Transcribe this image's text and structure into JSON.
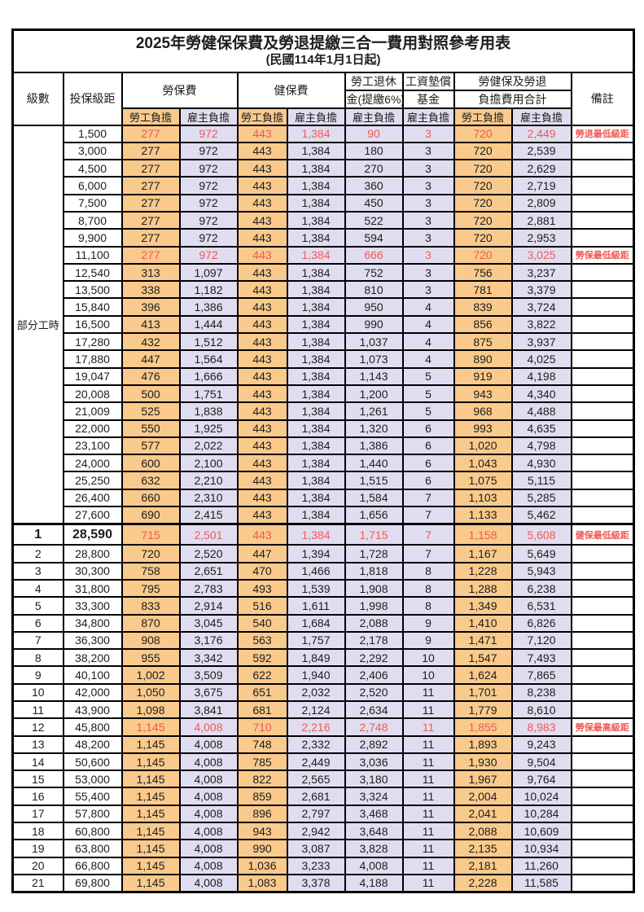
{
  "title": "2025年勞健保保費及勞退提繳三合一費用對照參考用表",
  "subtitle": "(民國114年1月1日起)",
  "colors": {
    "employee_col_bg": "#f9ca8c",
    "employer_col_bg": "#e1ddf0",
    "highlight_text": "#ee5a54",
    "border": "#000000",
    "text": "#1d1d1d"
  },
  "header": {
    "level": "級數",
    "bracket": "投保級距",
    "labor_fee": "勞保費",
    "health_fee": "健保費",
    "pension_line1": "勞工退休",
    "pension_line2": "金(提繳6%)",
    "wage_fund_line1": "工資墊償",
    "wage_fund_line2": "基金",
    "total_line1": "勞健保及勞退",
    "total_line2": "負擔費用合計",
    "remark": "備註",
    "employee": "勞工負擔",
    "employer": "雇主負擔"
  },
  "part_time_label": "部分工時",
  "part_time_rowspan": 23,
  "chart_data": {
    "type": "table",
    "title": "2025年勞健保保費及勞退提繳三合一費用對照參考用表 (民國114年1月1日起)",
    "columns": [
      "級數",
      "投保級距",
      "勞保費-勞工負擔",
      "勞保費-雇主負擔",
      "健保費-勞工負擔",
      "健保費-雇主負擔",
      "勞工退休金(提繳6%)-雇主負擔",
      "工資墊償基金-雇主負擔",
      "合計-勞工負擔",
      "合計-雇主負擔",
      "備註"
    ]
  },
  "rows": [
    {
      "level": "",
      "bracket": "1,500",
      "values": [
        "277",
        "972",
        "443",
        "1,384",
        "90",
        "3",
        "720",
        "2,449"
      ],
      "remark": "勞退最低級距",
      "red": true
    },
    {
      "level": "",
      "bracket": "3,000",
      "values": [
        "277",
        "972",
        "443",
        "1,384",
        "180",
        "3",
        "720",
        "2,539"
      ],
      "remark": ""
    },
    {
      "level": "",
      "bracket": "4,500",
      "values": [
        "277",
        "972",
        "443",
        "1,384",
        "270",
        "3",
        "720",
        "2,629"
      ],
      "remark": ""
    },
    {
      "level": "",
      "bracket": "6,000",
      "values": [
        "277",
        "972",
        "443",
        "1,384",
        "360",
        "3",
        "720",
        "2,719"
      ],
      "remark": ""
    },
    {
      "level": "",
      "bracket": "7,500",
      "values": [
        "277",
        "972",
        "443",
        "1,384",
        "450",
        "3",
        "720",
        "2,809"
      ],
      "remark": ""
    },
    {
      "level": "",
      "bracket": "8,700",
      "values": [
        "277",
        "972",
        "443",
        "1,384",
        "522",
        "3",
        "720",
        "2,881"
      ],
      "remark": ""
    },
    {
      "level": "",
      "bracket": "9,900",
      "values": [
        "277",
        "972",
        "443",
        "1,384",
        "594",
        "3",
        "720",
        "2,953"
      ],
      "remark": ""
    },
    {
      "level": "",
      "bracket": "11,100",
      "values": [
        "277",
        "972",
        "443",
        "1,384",
        "666",
        "3",
        "720",
        "3,025"
      ],
      "remark": "勞保最低級距",
      "red": true
    },
    {
      "level": "",
      "bracket": "12,540",
      "values": [
        "313",
        "1,097",
        "443",
        "1,384",
        "752",
        "3",
        "756",
        "3,237"
      ],
      "remark": ""
    },
    {
      "level": "",
      "bracket": "13,500",
      "values": [
        "338",
        "1,182",
        "443",
        "1,384",
        "810",
        "3",
        "781",
        "3,379"
      ],
      "remark": ""
    },
    {
      "level": "",
      "bracket": "15,840",
      "values": [
        "396",
        "1,386",
        "443",
        "1,384",
        "950",
        "4",
        "839",
        "3,724"
      ],
      "remark": ""
    },
    {
      "level": "",
      "bracket": "16,500",
      "values": [
        "413",
        "1,444",
        "443",
        "1,384",
        "990",
        "4",
        "856",
        "3,822"
      ],
      "remark": ""
    },
    {
      "level": "",
      "bracket": "17,280",
      "values": [
        "432",
        "1,512",
        "443",
        "1,384",
        "1,037",
        "4",
        "875",
        "3,937"
      ],
      "remark": ""
    },
    {
      "level": "",
      "bracket": "17,880",
      "values": [
        "447",
        "1,564",
        "443",
        "1,384",
        "1,073",
        "4",
        "890",
        "4,025"
      ],
      "remark": ""
    },
    {
      "level": "",
      "bracket": "19,047",
      "values": [
        "476",
        "1,666",
        "443",
        "1,384",
        "1,143",
        "5",
        "919",
        "4,198"
      ],
      "remark": ""
    },
    {
      "level": "",
      "bracket": "20,008",
      "values": [
        "500",
        "1,751",
        "443",
        "1,384",
        "1,200",
        "5",
        "943",
        "4,340"
      ],
      "remark": ""
    },
    {
      "level": "",
      "bracket": "21,009",
      "values": [
        "525",
        "1,838",
        "443",
        "1,384",
        "1,261",
        "5",
        "968",
        "4,488"
      ],
      "remark": ""
    },
    {
      "level": "",
      "bracket": "22,000",
      "values": [
        "550",
        "1,925",
        "443",
        "1,384",
        "1,320",
        "6",
        "993",
        "4,635"
      ],
      "remark": ""
    },
    {
      "level": "",
      "bracket": "23,100",
      "values": [
        "577",
        "2,022",
        "443",
        "1,384",
        "1,386",
        "6",
        "1,020",
        "4,798"
      ],
      "remark": ""
    },
    {
      "level": "",
      "bracket": "24,000",
      "values": [
        "600",
        "2,100",
        "443",
        "1,384",
        "1,440",
        "6",
        "1,043",
        "4,930"
      ],
      "remark": ""
    },
    {
      "level": "",
      "bracket": "25,250",
      "values": [
        "632",
        "2,210",
        "443",
        "1,384",
        "1,515",
        "6",
        "1,075",
        "5,115"
      ],
      "remark": ""
    },
    {
      "level": "",
      "bracket": "26,400",
      "values": [
        "660",
        "2,310",
        "443",
        "1,384",
        "1,584",
        "7",
        "1,103",
        "5,285"
      ],
      "remark": ""
    },
    {
      "level": "",
      "bracket": "27,600",
      "values": [
        "690",
        "2,415",
        "443",
        "1,384",
        "1,656",
        "7",
        "1,133",
        "5,462"
      ],
      "remark": ""
    },
    {
      "level": "1",
      "bracket": "28,590",
      "values": [
        "715",
        "2,501",
        "443",
        "1,384",
        "1,715",
        "7",
        "1,158",
        "5,608"
      ],
      "remark": "健保最低級距",
      "red": true,
      "big": true,
      "section": true
    },
    {
      "level": "2",
      "bracket": "28,800",
      "values": [
        "720",
        "2,520",
        "447",
        "1,394",
        "1,728",
        "7",
        "1,167",
        "5,649"
      ],
      "remark": ""
    },
    {
      "level": "3",
      "bracket": "30,300",
      "values": [
        "758",
        "2,651",
        "470",
        "1,466",
        "1,818",
        "8",
        "1,228",
        "5,943"
      ],
      "remark": ""
    },
    {
      "level": "4",
      "bracket": "31,800",
      "values": [
        "795",
        "2,783",
        "493",
        "1,539",
        "1,908",
        "8",
        "1,288",
        "6,238"
      ],
      "remark": ""
    },
    {
      "level": "5",
      "bracket": "33,300",
      "values": [
        "833",
        "2,914",
        "516",
        "1,611",
        "1,998",
        "8",
        "1,349",
        "6,531"
      ],
      "remark": ""
    },
    {
      "level": "6",
      "bracket": "34,800",
      "values": [
        "870",
        "3,045",
        "540",
        "1,684",
        "2,088",
        "9",
        "1,410",
        "6,826"
      ],
      "remark": ""
    },
    {
      "level": "7",
      "bracket": "36,300",
      "values": [
        "908",
        "3,176",
        "563",
        "1,757",
        "2,178",
        "9",
        "1,471",
        "7,120"
      ],
      "remark": ""
    },
    {
      "level": "8",
      "bracket": "38,200",
      "values": [
        "955",
        "3,342",
        "592",
        "1,849",
        "2,292",
        "10",
        "1,547",
        "7,493"
      ],
      "remark": ""
    },
    {
      "level": "9",
      "bracket": "40,100",
      "values": [
        "1,002",
        "3,509",
        "622",
        "1,940",
        "2,406",
        "10",
        "1,624",
        "7,865"
      ],
      "remark": ""
    },
    {
      "level": "10",
      "bracket": "42,000",
      "values": [
        "1,050",
        "3,675",
        "651",
        "2,032",
        "2,520",
        "11",
        "1,701",
        "8,238"
      ],
      "remark": ""
    },
    {
      "level": "11",
      "bracket": "43,900",
      "values": [
        "1,098",
        "3,841",
        "681",
        "2,124",
        "2,634",
        "11",
        "1,779",
        "8,610"
      ],
      "remark": ""
    },
    {
      "level": "12",
      "bracket": "45,800",
      "values": [
        "1,145",
        "4,008",
        "710",
        "2,216",
        "2,748",
        "11",
        "1,855",
        "8,983"
      ],
      "remark": "勞保最高級距",
      "red": true
    },
    {
      "level": "13",
      "bracket": "48,200",
      "values": [
        "1,145",
        "4,008",
        "748",
        "2,332",
        "2,892",
        "11",
        "1,893",
        "9,243"
      ],
      "remark": ""
    },
    {
      "level": "14",
      "bracket": "50,600",
      "values": [
        "1,145",
        "4,008",
        "785",
        "2,449",
        "3,036",
        "11",
        "1,930",
        "9,504"
      ],
      "remark": ""
    },
    {
      "level": "15",
      "bracket": "53,000",
      "values": [
        "1,145",
        "4,008",
        "822",
        "2,565",
        "3,180",
        "11",
        "1,967",
        "9,764"
      ],
      "remark": ""
    },
    {
      "level": "16",
      "bracket": "55,400",
      "values": [
        "1,145",
        "4,008",
        "859",
        "2,681",
        "3,324",
        "11",
        "2,004",
        "10,024"
      ],
      "remark": ""
    },
    {
      "level": "17",
      "bracket": "57,800",
      "values": [
        "1,145",
        "4,008",
        "896",
        "2,797",
        "3,468",
        "11",
        "2,041",
        "10,284"
      ],
      "remark": ""
    },
    {
      "level": "18",
      "bracket": "60,800",
      "values": [
        "1,145",
        "4,008",
        "943",
        "2,942",
        "3,648",
        "11",
        "2,088",
        "10,609"
      ],
      "remark": ""
    },
    {
      "level": "19",
      "bracket": "63,800",
      "values": [
        "1,145",
        "4,008",
        "990",
        "3,087",
        "3,828",
        "11",
        "2,135",
        "10,934"
      ],
      "remark": ""
    },
    {
      "level": "20",
      "bracket": "66,800",
      "values": [
        "1,145",
        "4,008",
        "1,036",
        "3,233",
        "4,008",
        "11",
        "2,181",
        "11,260"
      ],
      "remark": ""
    },
    {
      "level": "21",
      "bracket": "69,800",
      "values": [
        "1,145",
        "4,008",
        "1,083",
        "3,378",
        "4,188",
        "11",
        "2,228",
        "11,585"
      ],
      "remark": ""
    }
  ]
}
